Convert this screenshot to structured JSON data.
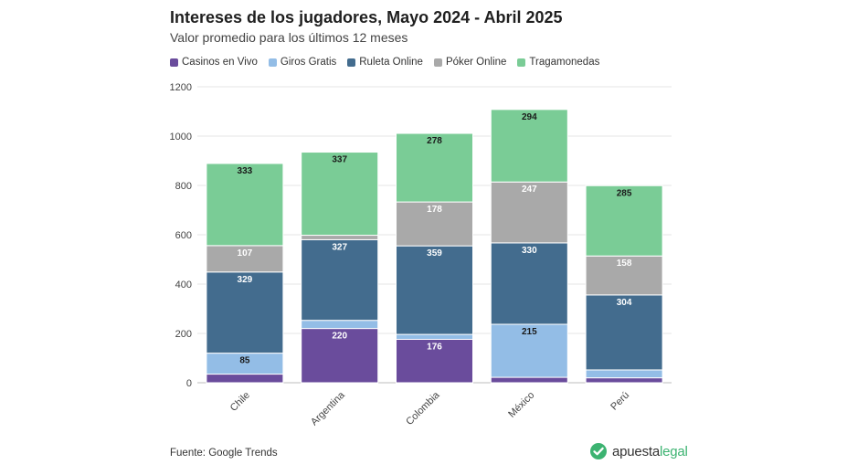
{
  "header": {
    "title": "Intereses de los jugadores, Mayo 2024 - Abril 2025",
    "subtitle": "Valor promedio para los últimos 12 meses"
  },
  "footer": {
    "source": "Fuente: Google Trends",
    "brand_part1": "apuesta",
    "brand_part2": "legal"
  },
  "colors": {
    "casinos_en_vivo": "#6a4c9c",
    "giros_gratis": "#93bde6",
    "ruleta_online": "#436c8e",
    "poker_online": "#a9a9a9",
    "tragamonedas": "#7acc96",
    "brand_green": "#3cb371"
  },
  "chart_data": {
    "type": "bar",
    "stacked": true,
    "categories": [
      "Chile",
      "Argentina",
      "Colombia",
      "México",
      "Perú"
    ],
    "series": [
      {
        "name": "Casinos en Vivo",
        "values": [
          35,
          220,
          176,
          22,
          20
        ],
        "labels": [
          "",
          "220",
          "176",
          "",
          ""
        ]
      },
      {
        "name": "Giros Gratis",
        "values": [
          85,
          33,
          20,
          215,
          32
        ],
        "labels": [
          "85",
          "",
          "",
          "215",
          ""
        ]
      },
      {
        "name": "Ruleta Online",
        "values": [
          329,
          327,
          359,
          330,
          304
        ],
        "labels": [
          "329",
          "327",
          "359",
          "330",
          "304"
        ]
      },
      {
        "name": "Póker Online",
        "values": [
          107,
          18,
          178,
          247,
          158
        ],
        "labels": [
          "107",
          "",
          "178",
          "247",
          "158"
        ]
      },
      {
        "name": "Tragamonedas",
        "values": [
          333,
          337,
          278,
          294,
          285
        ],
        "labels": [
          "333",
          "337",
          "278",
          "294",
          "285"
        ]
      }
    ],
    "ylim": [
      0,
      1200
    ],
    "yticks": [
      "0",
      "200",
      "400",
      "600",
      "800",
      "1000",
      "1200"
    ],
    "grid": true,
    "legend_position": "top-left",
    "xlabel": "",
    "ylabel": ""
  }
}
